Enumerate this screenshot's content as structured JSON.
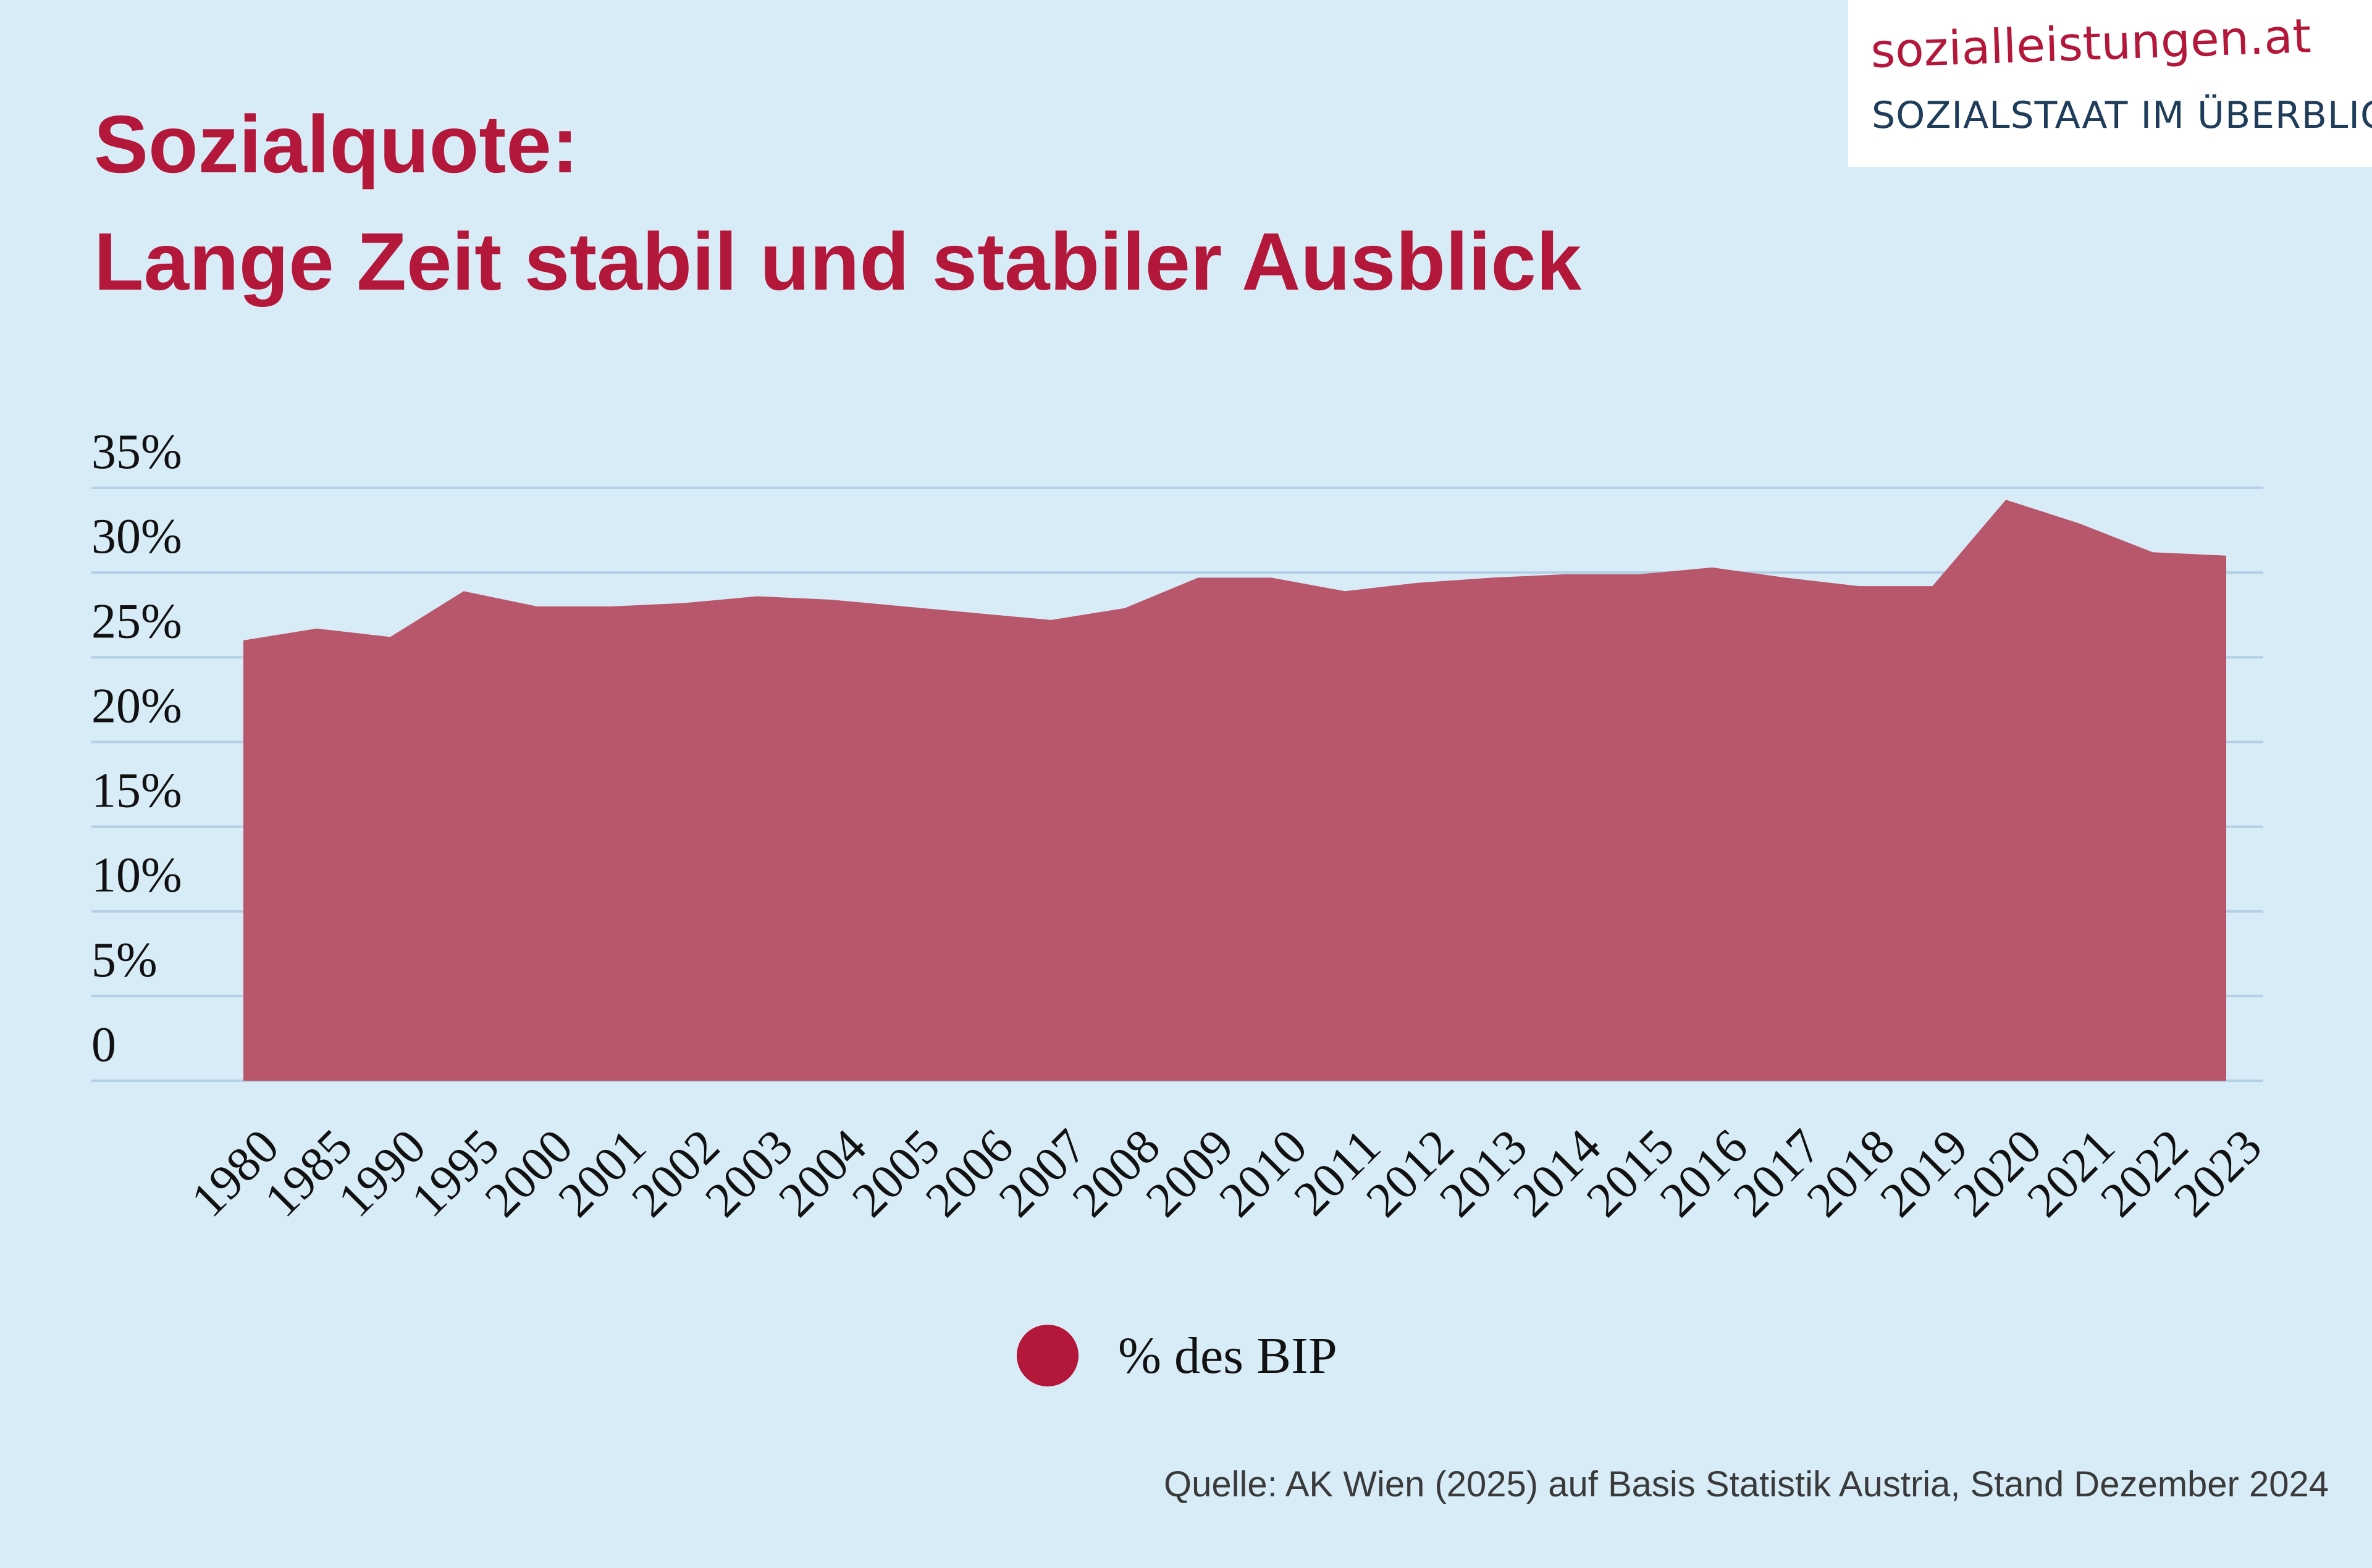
{
  "title": {
    "line1": "Sozialquote:",
    "line2": "Lange Zeit stabil und stabiler Ausblick"
  },
  "logo": {
    "name": "sozialleistungen.at",
    "tagline": "SOZIALSTAAT IM ÜBERBLICK"
  },
  "source": "Quelle: AK Wien (2025) auf Basis Statistik Austria, Stand Dezember 2024",
  "colors": {
    "background": "#d8ecf8",
    "accent": "#b3173a",
    "area_fill": "#b8576b",
    "gridline": "#b4d0e6"
  },
  "chart_data": {
    "type": "area",
    "x": [
      "1980",
      "1985",
      "1990",
      "1995",
      "2000",
      "2001",
      "2002",
      "2003",
      "2004",
      "2005",
      "2006",
      "2007",
      "2008",
      "2009",
      "2010",
      "2011",
      "2012",
      "2013",
      "2014",
      "2015",
      "2016",
      "2017",
      "2018",
      "2019",
      "2020",
      "2021",
      "2022",
      "2023"
    ],
    "series": [
      {
        "name": "% des BIP",
        "values": [
          26.0,
          26.7,
          26.2,
          28.9,
          28.0,
          28.0,
          28.2,
          28.6,
          28.4,
          28.0,
          27.6,
          27.2,
          27.9,
          29.7,
          29.7,
          28.9,
          29.4,
          29.7,
          29.9,
          29.9,
          30.3,
          29.7,
          29.2,
          29.2,
          34.3,
          32.9,
          31.2,
          31.0
        ]
      }
    ],
    "ylim": [
      0,
      35
    ],
    "yticks": [
      0,
      5,
      10,
      15,
      20,
      25,
      30,
      35
    ],
    "ytick_labels": [
      "0",
      "5%",
      "10%",
      "15%",
      "20%",
      "25%",
      "30%",
      "35%"
    ],
    "grid": true,
    "legend": "bottom-center"
  }
}
